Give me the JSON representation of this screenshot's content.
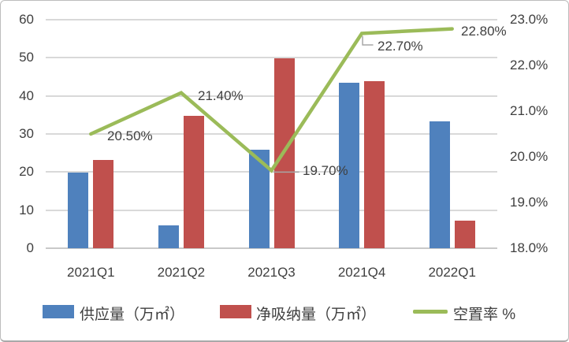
{
  "chart_data": {
    "type": "combo-bar-line",
    "categories": [
      "2021Q1",
      "2021Q2",
      "2021Q3",
      "2021Q4",
      "2022Q1"
    ],
    "series": [
      {
        "key": "supply",
        "name": "供应量（万㎡）",
        "chart_type": "bar",
        "axis": "left",
        "color": "#4f81bd",
        "values": [
          19.8,
          5.9,
          25.8,
          43.4,
          33.4
        ]
      },
      {
        "key": "absorption",
        "name": "净吸纳量（万㎡）",
        "chart_type": "bar",
        "axis": "left",
        "color": "#c0504d",
        "values": [
          23.2,
          34.8,
          49.9,
          43.9,
          7.3
        ]
      },
      {
        "key": "vacancy",
        "name": "空置率 %",
        "chart_type": "line",
        "axis": "right",
        "color": "#9bbb59",
        "values": [
          20.5,
          21.4,
          19.7,
          22.7,
          22.8
        ],
        "data_labels": [
          "20.50%",
          "21.40%",
          "19.70%",
          "22.70%",
          "22.80%"
        ]
      }
    ],
    "left_axis": {
      "min": 0,
      "max": 60,
      "step": 10,
      "ticks": [
        "0",
        "10",
        "20",
        "30",
        "40",
        "50",
        "60"
      ]
    },
    "right_axis": {
      "min": 18,
      "max": 23,
      "step": 1,
      "ticks": [
        "18.0%",
        "19.0%",
        "20.0%",
        "21.0%",
        "22.0%",
        "23.0%"
      ]
    },
    "grid": true,
    "legend_position": "bottom",
    "title": ""
  },
  "colors": {
    "supply_bar": "#4f81bd",
    "absorption_bar": "#c0504d",
    "vacancy_line": "#9bbb59",
    "gridline": "#d9d9d9",
    "leader_line": "#a6a6a6",
    "text": "#3f3f3f"
  }
}
